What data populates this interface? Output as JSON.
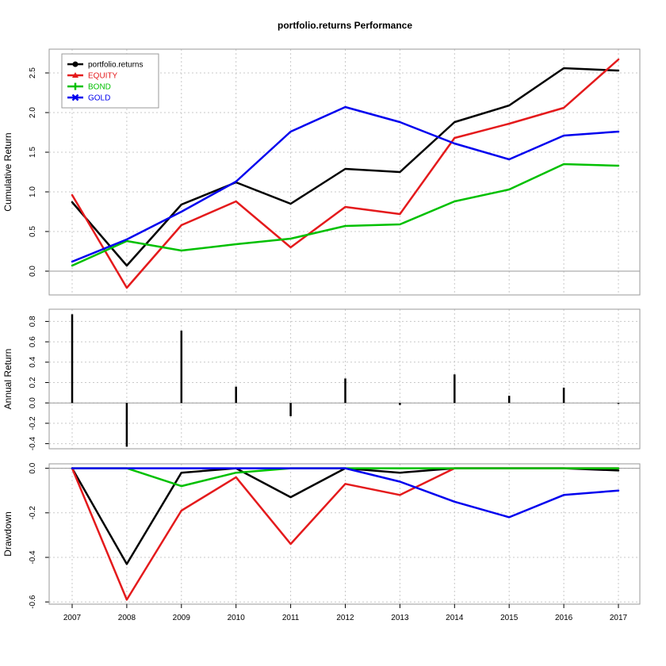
{
  "title": "portfolio.returns Performance",
  "series_colors": {
    "portfolio.returns": "#000000",
    "EQUITY": "#e41a1c",
    "BOND": "#00c000",
    "GOLD": "#0000ee"
  },
  "legend": {
    "placement": "top-left",
    "entries": [
      {
        "name": "portfolio.returns",
        "color": "#000000",
        "marker": "circle"
      },
      {
        "name": "EQUITY",
        "color": "#e41a1c",
        "marker": "triangle"
      },
      {
        "name": "BOND",
        "color": "#00c000",
        "marker": "plus"
      },
      {
        "name": "GOLD",
        "color": "#0000ee",
        "marker": "cross"
      }
    ]
  },
  "chart_data": [
    {
      "type": "line",
      "id": "cumulative",
      "title": "portfolio.returns Performance",
      "ylabel": "Cumulative Return",
      "x": [
        "2007",
        "2008",
        "2009",
        "2010",
        "2011",
        "2012",
        "2013",
        "2014",
        "2015",
        "2016",
        "2017"
      ],
      "ylim": [
        -0.3,
        2.8
      ],
      "yticks": [
        0.0,
        0.5,
        1.0,
        1.5,
        2.0,
        2.5
      ],
      "ytick_labels": [
        "0.0",
        "0.5",
        "1.0",
        "1.5",
        "2.0",
        "2.5"
      ],
      "grid": true,
      "series": [
        {
          "name": "portfolio.returns",
          "values": [
            0.87,
            0.07,
            0.84,
            1.12,
            0.85,
            1.29,
            1.25,
            1.88,
            2.09,
            2.56,
            2.53
          ]
        },
        {
          "name": "EQUITY",
          "values": [
            0.96,
            -0.21,
            0.58,
            0.88,
            0.3,
            0.81,
            0.72,
            1.68,
            1.86,
            2.06,
            2.67
          ]
        },
        {
          "name": "BOND",
          "values": [
            0.07,
            0.38,
            0.26,
            0.34,
            0.41,
            0.57,
            0.59,
            0.88,
            1.03,
            1.35,
            1.33
          ]
        },
        {
          "name": "GOLD",
          "values": [
            0.12,
            0.4,
            0.75,
            1.13,
            1.76,
            2.07,
            1.88,
            1.61,
            1.41,
            1.71,
            1.76
          ]
        }
      ]
    },
    {
      "type": "bar",
      "id": "annual",
      "ylabel": "Annual Return",
      "x": [
        "2007",
        "2008",
        "2009",
        "2010",
        "2011",
        "2012",
        "2013",
        "2014",
        "2015",
        "2016",
        "2017"
      ],
      "ylim": [
        -0.45,
        0.92
      ],
      "yticks": [
        -0.4,
        -0.2,
        0.0,
        0.2,
        0.4,
        0.6,
        0.8
      ],
      "ytick_labels": [
        "-0.4",
        "-0.2",
        "0.0",
        "0.2",
        "0.4",
        "0.6",
        "0.8"
      ],
      "grid": true,
      "series": [
        {
          "name": "portfolio.returns",
          "values": [
            0.87,
            -0.43,
            0.71,
            0.16,
            -0.13,
            0.24,
            -0.02,
            0.28,
            0.07,
            0.15,
            -0.01
          ]
        }
      ]
    },
    {
      "type": "line",
      "id": "drawdown",
      "ylabel": "Drawdown",
      "x": [
        "2007",
        "2008",
        "2009",
        "2010",
        "2011",
        "2012",
        "2013",
        "2014",
        "2015",
        "2016",
        "2017"
      ],
      "ylim": [
        -0.61,
        0.02
      ],
      "yticks": [
        -0.6,
        -0.4,
        -0.2,
        0.0
      ],
      "ytick_labels": [
        "-0.6",
        "-0.4",
        "-0.2",
        "0.0"
      ],
      "grid": true,
      "series": [
        {
          "name": "portfolio.returns",
          "values": [
            0.0,
            -0.43,
            -0.02,
            0.0,
            -0.13,
            0.0,
            -0.02,
            0.0,
            0.0,
            0.0,
            -0.01
          ]
        },
        {
          "name": "EQUITY",
          "values": [
            0.0,
            -0.59,
            -0.19,
            -0.04,
            -0.34,
            -0.07,
            -0.12,
            0.0,
            0.0,
            0.0,
            0.0
          ]
        },
        {
          "name": "BOND",
          "values": [
            0.0,
            0.0,
            -0.08,
            -0.02,
            0.0,
            0.0,
            0.0,
            0.0,
            0.0,
            0.0,
            0.0
          ]
        },
        {
          "name": "GOLD",
          "values": [
            0.0,
            0.0,
            0.0,
            0.0,
            0.0,
            0.0,
            -0.06,
            -0.15,
            -0.22,
            -0.12,
            -0.1
          ]
        }
      ]
    }
  ]
}
